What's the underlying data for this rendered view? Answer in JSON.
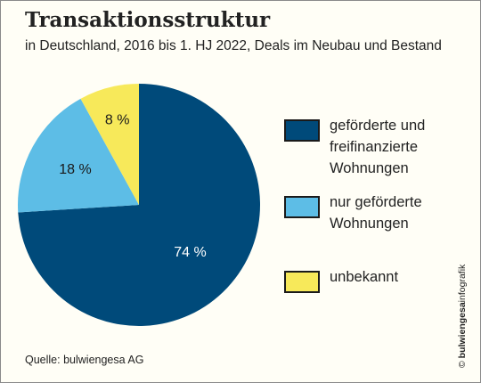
{
  "title": "Transaktionsstruktur",
  "subtitle": "in Deutschland, 2016 bis 1. HJ 2022, Deals im Neubau und Bestand",
  "chart_data": {
    "type": "pie",
    "title": "Transaktionsstruktur",
    "subtitle": "in Deutschland, 2016 bis 1. HJ 2022, Deals im Neubau und Bestand",
    "slices": [
      {
        "label": "geförderte und freifinanzierte Wohnungen",
        "value": 74,
        "value_label": "74 %",
        "color": "#004a7a"
      },
      {
        "label": "nur geförderte Wohnungen",
        "value": 18,
        "value_label": "18 %",
        "color": "#5dbde6"
      },
      {
        "label": "unbekannt",
        "value": 8,
        "value_label": "8 %",
        "color": "#f7e95a"
      }
    ],
    "start": "12 o'clock",
    "direction": "clockwise",
    "legend_position": "right"
  },
  "legend": [
    {
      "label": "geförderte und freifinanzierte Wohnungen",
      "color": "#004a7a"
    },
    {
      "label": "nur geförderte Wohnungen",
      "color": "#5dbde6"
    },
    {
      "label": "unbekannt",
      "color": "#f7e95a"
    }
  ],
  "source": "Quelle: bulwiengesa AG",
  "credit": {
    "symbol": "©",
    "brand": "bulwiengesa",
    "suffix": "infografik"
  }
}
